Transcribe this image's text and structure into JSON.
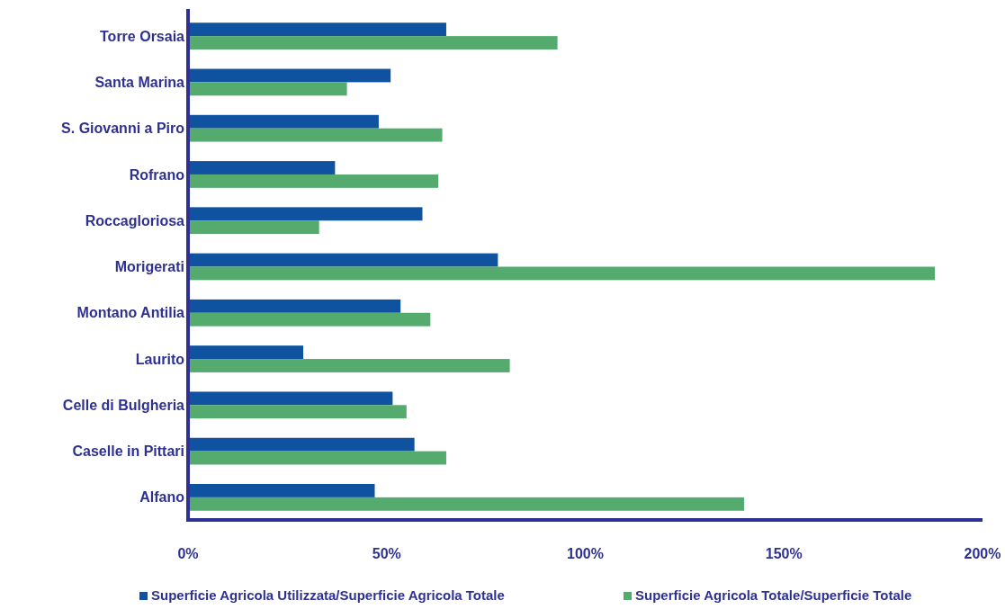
{
  "chart_data": {
    "type": "bar",
    "orientation": "horizontal",
    "categories": [
      "Torre Orsaia",
      "Santa Marina",
      "S. Giovanni a Piro",
      "Rofrano",
      "Roccagloriosa",
      "Morigerati",
      "Montano Antilia",
      "Laurito",
      "Celle di Bulgheria",
      "Caselle in Pittari",
      "Alfano"
    ],
    "series": [
      {
        "name": "Superficie Agricola Utilizzata/Superficie Agricola Totale",
        "color": "#0f52a0",
        "values": [
          65,
          51,
          48,
          37,
          59,
          78,
          53.5,
          29,
          51.5,
          57,
          47
        ]
      },
      {
        "name": "Superficie Agricola Totale/Superficie Totale",
        "color": "#55ab6e",
        "values": [
          93,
          40,
          64,
          63,
          33,
          188,
          61,
          81,
          55,
          65,
          140
        ]
      }
    ],
    "xlim": [
      0,
      200
    ],
    "xticks": [
      {
        "value": 0,
        "label": "0%"
      },
      {
        "value": 50,
        "label": "50%"
      },
      {
        "value": 100,
        "label": "100%"
      },
      {
        "value": 150,
        "label": "150%"
      },
      {
        "value": 200,
        "label": "200%"
      }
    ],
    "grid": false,
    "legend": "bottom"
  }
}
